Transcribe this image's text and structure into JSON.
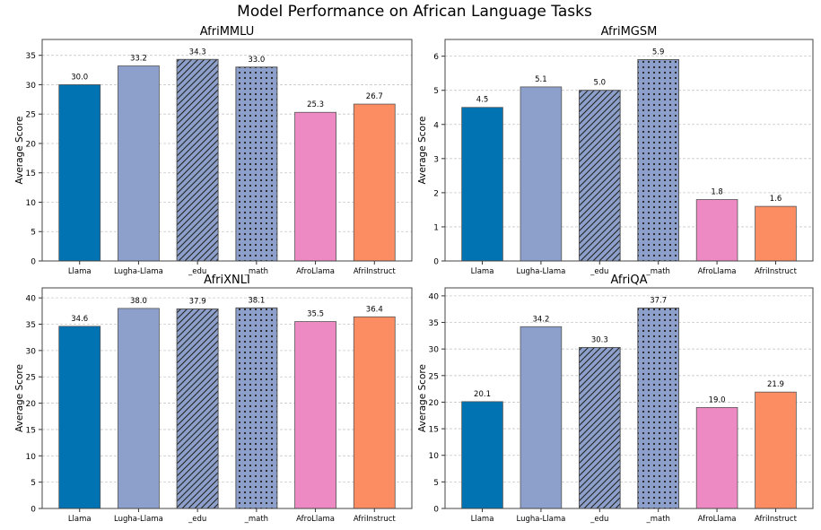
{
  "title": "Model Performance on African Language Tasks",
  "colors": {
    "Llama": "#0173b2",
    "Lugha-Llama": "#8da0cb",
    "_edu": "#8da0cb",
    "_math": "#8da0cb",
    "AfroLlama": "#ee8ac3",
    "AfriInstruct": "#fc8d62"
  },
  "hatches": {
    "_edu": "diagonal",
    "_math": "dots"
  },
  "chart_data": [
    {
      "type": "bar",
      "title": "AfriMMLU",
      "ylabel": "Average Score",
      "categories": [
        "Llama",
        "Lugha-Llama",
        "_edu",
        "_math",
        "AfroLlama",
        "AfriInstruct"
      ],
      "values": [
        30.0,
        33.2,
        34.3,
        33.0,
        25.3,
        26.7
      ],
      "ylim": [
        0,
        37.7
      ],
      "yticks": [
        0,
        5,
        10,
        15,
        20,
        25,
        30,
        35
      ],
      "grid": "y dashed"
    },
    {
      "type": "bar",
      "title": "AfriMGSM",
      "ylabel": "Average Score",
      "categories": [
        "Llama",
        "Lugha-Llama",
        "_edu",
        "_math",
        "AfroLlama",
        "AfriInstruct"
      ],
      "values": [
        4.5,
        5.1,
        5.0,
        5.9,
        1.8,
        1.6
      ],
      "ylim": [
        0,
        6.49
      ],
      "yticks": [
        0,
        1,
        2,
        3,
        4,
        5,
        6
      ],
      "grid": "y dashed"
    },
    {
      "type": "bar",
      "title": "AfriXNLI",
      "ylabel": "Average Score",
      "categories": [
        "Llama",
        "Lugha-Llama",
        "_edu",
        "_math",
        "AfroLlama",
        "AfriInstruct"
      ],
      "values": [
        34.6,
        38.0,
        37.9,
        38.1,
        35.5,
        36.4
      ],
      "ylim": [
        0,
        41.9
      ],
      "yticks": [
        0,
        5,
        10,
        15,
        20,
        25,
        30,
        35,
        40
      ],
      "grid": "y dashed"
    },
    {
      "type": "bar",
      "title": "AfriQA",
      "ylabel": "Average Score",
      "categories": [
        "Llama",
        "Lugha-Llama",
        "_edu",
        "_math",
        "AfroLlama",
        "AfriInstruct"
      ],
      "values": [
        20.1,
        34.2,
        30.3,
        37.7,
        19.0,
        21.9
      ],
      "ylim": [
        0,
        41.5
      ],
      "yticks": [
        0,
        5,
        10,
        15,
        20,
        25,
        30,
        35,
        40
      ],
      "grid": "y dashed"
    }
  ]
}
